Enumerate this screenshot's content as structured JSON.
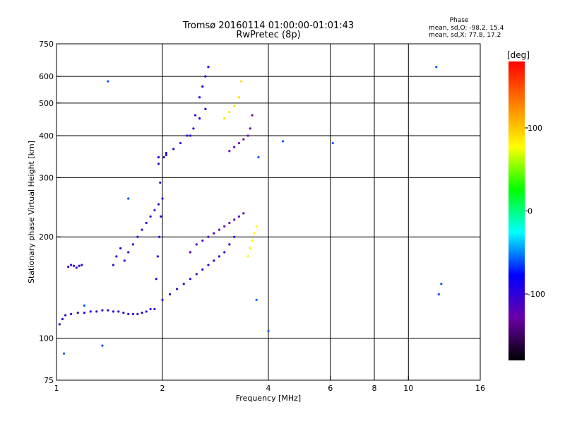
{
  "chart_data": {
    "type": "scatter",
    "title": "Tromsø 20160114 01:00:00-01:01:43",
    "subtitle": "RwPretec (8p)",
    "xlabel": "Frequency [MHz]",
    "ylabel": "Stationary phase Virtual Height [km]",
    "x_scale": "log",
    "y_scale": "log",
    "xlim": [
      1,
      16
    ],
    "ylim": [
      75,
      750
    ],
    "grid": true,
    "x_ticks": [
      1,
      2,
      4,
      6,
      8,
      10,
      16
    ],
    "y_ticks": [
      75,
      100,
      200,
      300,
      400,
      500,
      600,
      750
    ],
    "x_gridlines": [
      2,
      4,
      6,
      8,
      10
    ],
    "y_gridlines": [
      100,
      200,
      300,
      400,
      500,
      600
    ],
    "phase_stats": {
      "heading": "Phase",
      "line_O": "mean, sd,O: -98.2, 15.4",
      "line_X": "mean, sd,X:  77.8, 17.2"
    },
    "colorbar": {
      "label": "[deg]",
      "range": [
        -180,
        180
      ],
      "ticks": [
        100,
        0,
        -100
      ],
      "stops": [
        "#000000",
        "#6a00a8",
        "#0000ff",
        "#00ffff",
        "#00ff00",
        "#ffff00",
        "#ff8000",
        "#ff0000"
      ]
    },
    "series": [
      {
        "x": [
          1.02,
          1.04,
          1.06,
          1.1,
          1.15,
          1.2,
          1.25,
          1.3,
          1.35,
          1.4,
          1.45,
          1.5,
          1.55,
          1.6,
          1.65,
          1.7,
          1.75,
          1.8,
          1.85,
          1.9
        ],
        "y": [
          110,
          114,
          117,
          118,
          119,
          119,
          120,
          120,
          121,
          121,
          120,
          120,
          119,
          118,
          118,
          118,
          119,
          120,
          122,
          122
        ],
        "phase": -100
      },
      {
        "x": [
          1.08,
          1.1,
          1.12,
          1.14,
          1.16,
          1.18
        ],
        "y": [
          163,
          165,
          164,
          162,
          164,
          165
        ],
        "phase": -100
      },
      {
        "x": [
          1.45,
          1.48,
          1.52,
          1.56,
          1.6,
          1.65,
          1.7,
          1.75,
          1.8,
          1.85,
          1.9,
          1.95
        ],
        "y": [
          165,
          175,
          185,
          170,
          180,
          190,
          200,
          210,
          220,
          230,
          240,
          250
        ],
        "phase": -105
      },
      {
        "x": [
          1.92,
          1.94,
          1.96,
          1.98,
          2.0,
          1.97,
          1.95,
          2.02,
          2.05
        ],
        "y": [
          150,
          175,
          200,
          230,
          260,
          290,
          330,
          345,
          350
        ],
        "phase": -100
      },
      {
        "x": [
          1.95,
          2.05,
          2.15,
          2.25,
          2.35,
          2.45,
          2.55,
          2.65
        ],
        "y": [
          345,
          355,
          365,
          380,
          400,
          420,
          450,
          480
        ],
        "phase": -90
      },
      {
        "x": [
          2.4,
          2.48,
          2.55,
          2.6,
          2.65,
          2.7
        ],
        "y": [
          400,
          460,
          520,
          560,
          600,
          640
        ],
        "phase": -85
      },
      {
        "x": [
          2.0,
          2.1,
          2.2,
          2.3,
          2.4,
          2.5,
          2.6,
          2.7,
          2.8,
          2.9,
          3.0,
          3.1,
          3.2
        ],
        "y": [
          130,
          135,
          140,
          145,
          150,
          155,
          160,
          165,
          170,
          175,
          180,
          190,
          200
        ],
        "phase": -100
      },
      {
        "x": [
          2.4,
          2.5,
          2.6,
          2.7,
          2.8,
          2.9,
          3.0,
          3.1,
          3.2,
          3.3,
          3.4
        ],
        "y": [
          180,
          190,
          195,
          200,
          205,
          210,
          215,
          220,
          225,
          230,
          235
        ],
        "phase": -120
      },
      {
        "x": [
          3.1,
          3.2,
          3.3,
          3.4,
          3.5,
          3.55,
          3.6
        ],
        "y": [
          360,
          370,
          380,
          390,
          400,
          420,
          460
        ],
        "phase": -130
      },
      {
        "x": [
          3.0,
          3.1,
          3.2,
          3.3,
          3.35
        ],
        "y": [
          450,
          470,
          490,
          520,
          580
        ],
        "phase": 90
      },
      {
        "x": [
          3.5,
          3.55,
          3.6,
          3.65,
          3.7
        ],
        "y": [
          175,
          185,
          195,
          205,
          215
        ],
        "phase": 80
      },
      {
        "x": [
          1.05,
          1.2,
          1.35,
          1.4,
          1.6,
          3.7,
          3.75,
          4.0,
          4.4,
          6.1,
          12.0,
          12.2,
          12.4
        ],
        "y": [
          90,
          125,
          95,
          580,
          260,
          130,
          345,
          105,
          385,
          380,
          640,
          135,
          145
        ],
        "phase": -60
      }
    ]
  }
}
